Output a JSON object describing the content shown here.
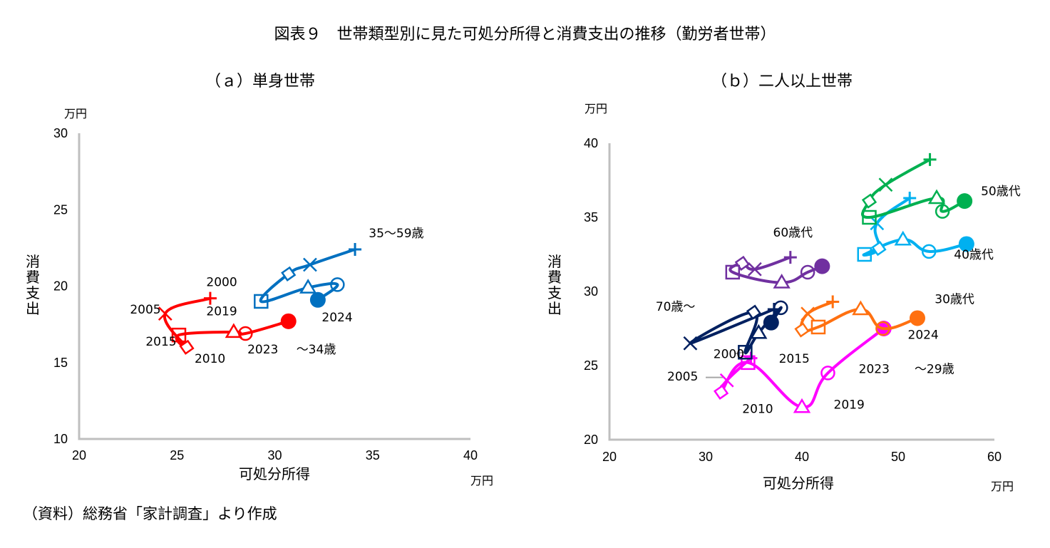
{
  "title": "図表９　世帯類型別に見た可処分所得と消費支出の推移（勤労者世帯）",
  "source_note": "（資料）総務省「家計調査」より作成",
  "chart_data": [
    {
      "type": "scatter",
      "panel_title": "（ａ）単身世帯",
      "xlabel": "可処分所得",
      "ylabel": "消費支出",
      "x_unit": "万円",
      "y_unit": "万円",
      "xlim": [
        20,
        40
      ],
      "ylim": [
        10,
        30
      ],
      "xticks": [
        20,
        25,
        30,
        35,
        40
      ],
      "yticks": [
        10,
        15,
        20,
        25,
        30
      ],
      "grid": false,
      "years": [
        "2000",
        "2005",
        "2010",
        "2015",
        "2019",
        "2023",
        "2024"
      ],
      "markers": [
        "plus",
        "cross",
        "diamond",
        "square",
        "triangle",
        "circle-open",
        "circle-filled"
      ],
      "series": [
        {
          "name": "〜34歳",
          "color": "#ff0000",
          "x": [
            26.7,
            24.4,
            25.5,
            25.1,
            27.9,
            28.5,
            30.7
          ],
          "y": [
            19.2,
            18.2,
            16.0,
            16.8,
            17.0,
            16.9,
            17.7
          ]
        },
        {
          "name": "35〜59歳",
          "color": "#0070c0",
          "x": [
            34.1,
            31.8,
            30.7,
            29.3,
            31.7,
            33.2,
            32.2
          ],
          "y": [
            22.4,
            21.4,
            20.8,
            19.0,
            19.9,
            20.1,
            19.1
          ]
        }
      ],
      "annotations": [
        {
          "text": "2000",
          "x": 26.5,
          "y": 20.0
        },
        {
          "text": "2005",
          "x": 22.6,
          "y": 18.2
        },
        {
          "text": "2010",
          "x": 25.9,
          "y": 15.0
        },
        {
          "text": "2015",
          "x": 23.4,
          "y": 16.1
        },
        {
          "text": "2019",
          "x": 26.5,
          "y": 18.1
        },
        {
          "text": "2023",
          "x": 28.6,
          "y": 15.6
        },
        {
          "text": "2024",
          "x": 32.4,
          "y": 17.7
        },
        {
          "text": "〜34歳",
          "x": 31.1,
          "y": 15.6
        },
        {
          "text": "35〜59歳",
          "x": 34.8,
          "y": 23.2
        }
      ]
    },
    {
      "type": "scatter",
      "panel_title": "（ｂ）二人以上世帯",
      "xlabel": "可処分所得",
      "ylabel": "消費支出",
      "x_unit": "万円",
      "y_unit": "万円",
      "xlim": [
        20,
        60
      ],
      "ylim": [
        20,
        40
      ],
      "xticks": [
        20,
        30,
        40,
        50,
        60
      ],
      "yticks": [
        20,
        25,
        30,
        35,
        40
      ],
      "grid": false,
      "years": [
        "2000",
        "2005",
        "2010",
        "2015",
        "2019",
        "2023",
        "2024"
      ],
      "markers": [
        "plus",
        "cross",
        "diamond",
        "square",
        "triangle",
        "circle-open",
        "circle-filled"
      ],
      "series": [
        {
          "name": "〜29歳",
          "color": "#ff00ff",
          "x": [
            34.7,
            32.2,
            31.6,
            34.4,
            40.0,
            42.7,
            48.5
          ],
          "y": [
            25.5,
            24.0,
            23.2,
            25.2,
            22.2,
            24.5,
            27.5
          ]
        },
        {
          "name": "30歳代",
          "color": "#ff7010",
          "x": [
            43.2,
            40.6,
            40.0,
            41.7,
            46.1,
            48.4,
            52.0
          ],
          "y": [
            29.3,
            28.5,
            27.4,
            27.6,
            28.8,
            27.5,
            28.2
          ]
        },
        {
          "name": "40歳代",
          "color": "#00b0f0",
          "x": [
            51.2,
            47.8,
            48.0,
            46.5,
            50.5,
            53.2,
            57.1
          ],
          "y": [
            36.3,
            34.6,
            32.9,
            32.5,
            33.5,
            32.7,
            33.2
          ]
        },
        {
          "name": "50歳代",
          "color": "#00b050",
          "x": [
            53.3,
            48.7,
            47.0,
            47.0,
            54.0,
            54.6,
            56.9
          ],
          "y": [
            38.9,
            37.2,
            36.1,
            35.0,
            36.3,
            35.4,
            36.1
          ]
        },
        {
          "name": "60歳代",
          "color": "#7030a0",
          "x": [
            38.8,
            35.1,
            33.8,
            32.8,
            37.9,
            40.6,
            42.1
          ],
          "y": [
            32.3,
            31.5,
            31.9,
            31.3,
            30.6,
            31.3,
            31.7
          ]
        },
        {
          "name": "70歳〜",
          "color": "#002060",
          "x": [
            37.1,
            28.4,
            35.0,
            34.1,
            35.5,
            37.8,
            36.8
          ],
          "y": [
            28.8,
            26.5,
            28.6,
            25.9,
            27.2,
            28.9,
            27.9
          ]
        }
      ],
      "annotations": [
        {
          "text": "2000",
          "x": 30.8,
          "y": 25.5
        },
        {
          "text": "2005",
          "x": 26.0,
          "y": 24.0
        },
        {
          "text": "2010",
          "x": 33.8,
          "y": 21.8
        },
        {
          "text": "2015",
          "x": 37.6,
          "y": 25.2
        },
        {
          "text": "2019",
          "x": 43.3,
          "y": 22.1
        },
        {
          "text": "2023",
          "x": 45.9,
          "y": 24.5
        },
        {
          "text": "2024",
          "x": 51.0,
          "y": 26.8
        },
        {
          "text": "〜29歳",
          "x": 51.7,
          "y": 24.5
        },
        {
          "text": "30歳代",
          "x": 53.8,
          "y": 29.2
        },
        {
          "text": "40歳代",
          "x": 55.8,
          "y": 32.2
        },
        {
          "text": "50歳代",
          "x": 58.6,
          "y": 36.5
        },
        {
          "text": "60歳代",
          "x": 37.0,
          "y": 33.7
        },
        {
          "text": "70歳〜",
          "x": 24.8,
          "y": 28.7
        }
      ],
      "leader_lines": [
        {
          "label": "2000",
          "from": [
            33.0,
            25.8
          ],
          "to": [
            34.0,
            25.9
          ]
        },
        {
          "label": "2005",
          "from": [
            30.0,
            24.2
          ],
          "to": [
            31.8,
            24.2
          ]
        }
      ]
    }
  ]
}
